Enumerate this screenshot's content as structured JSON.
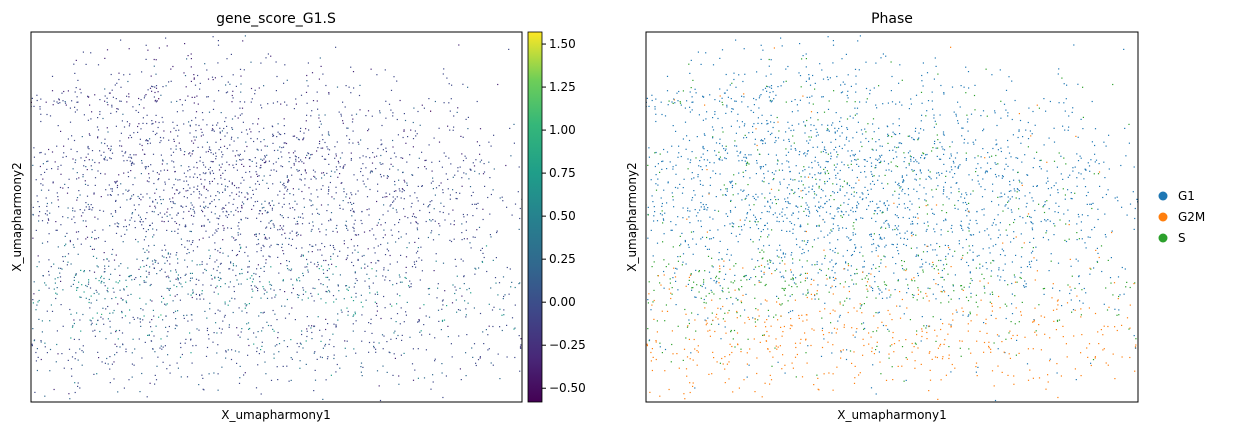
{
  "panels": [
    {
      "title": "gene_score_G1.S",
      "xlabel": "X_umapharmony1",
      "ylabel": "X_umapharmony2"
    },
    {
      "title": "Phase",
      "xlabel": "X_umapharmony1",
      "ylabel": "X_umapharmony2"
    }
  ],
  "colorbar": {
    "ticks": [
      "1.50",
      "1.25",
      "1.00",
      "0.75",
      "0.50",
      "0.25",
      "0.00",
      "−0.25",
      "−0.50"
    ]
  },
  "legend": {
    "items": [
      {
        "label": "G1",
        "color": "#1f77b4"
      },
      {
        "label": "G2M",
        "color": "#ff7f0e"
      },
      {
        "label": "S",
        "color": "#2ca02c"
      }
    ]
  },
  "chart_data": [
    {
      "type": "scatter",
      "title": "gene_score_G1.S",
      "xlabel": "X_umapharmony1",
      "ylabel": "X_umapharmony2",
      "color_scale": "viridis",
      "color_range": [
        -0.58,
        1.57
      ],
      "colorbar_ticks": [
        -0.5,
        -0.25,
        0.0,
        0.25,
        0.5,
        0.75,
        1.0,
        1.25,
        1.5
      ],
      "axis_ticks": false,
      "grid": false
    },
    {
      "type": "scatter",
      "title": "Phase",
      "xlabel": "X_umapharmony1",
      "ylabel": "X_umapharmony2",
      "categories": [
        "G1",
        "G2M",
        "S"
      ],
      "colors": [
        "#1f77b4",
        "#ff7f0e",
        "#2ca02c"
      ],
      "legend": "right",
      "axis_ticks": false,
      "grid": false
    }
  ]
}
